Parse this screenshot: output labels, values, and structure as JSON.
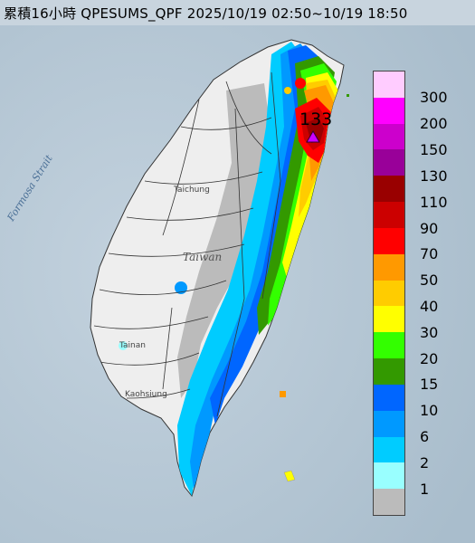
{
  "title": "累積16小時 QPESUMS_QPF 2025/10/19 02:50~10/19 18:50",
  "max_label": "133",
  "place_labels": {
    "taiwan": "Taiwan",
    "strait": "Formosa Strait",
    "taichung": "Taichung",
    "tainan": "Tainan",
    "kaohsiung": "Kaohsiung"
  },
  "legend": [
    {
      "label": "300",
      "color": "#FFCCFF"
    },
    {
      "label": "200",
      "color": "#FF00FF"
    },
    {
      "label": "150",
      "color": "#CC00CC"
    },
    {
      "label": "130",
      "color": "#990099"
    },
    {
      "label": "110",
      "color": "#990000"
    },
    {
      "label": "90",
      "color": "#CC0000"
    },
    {
      "label": "70",
      "color": "#FF0000"
    },
    {
      "label": "50",
      "color": "#FF9900"
    },
    {
      "label": "40",
      "color": "#FFCC00"
    },
    {
      "label": "30",
      "color": "#FFFF00"
    },
    {
      "label": "20",
      "color": "#33FF00"
    },
    {
      "label": "15",
      "color": "#339900"
    },
    {
      "label": "10",
      "color": "#0066FF"
    },
    {
      "label": "6",
      "color": "#0099FF"
    },
    {
      "label": "2",
      "color": "#00CCFF"
    },
    {
      "label": "1",
      "color": "#99FFFF"
    },
    {
      "label": "",
      "color": "#BBBBBB"
    }
  ]
}
